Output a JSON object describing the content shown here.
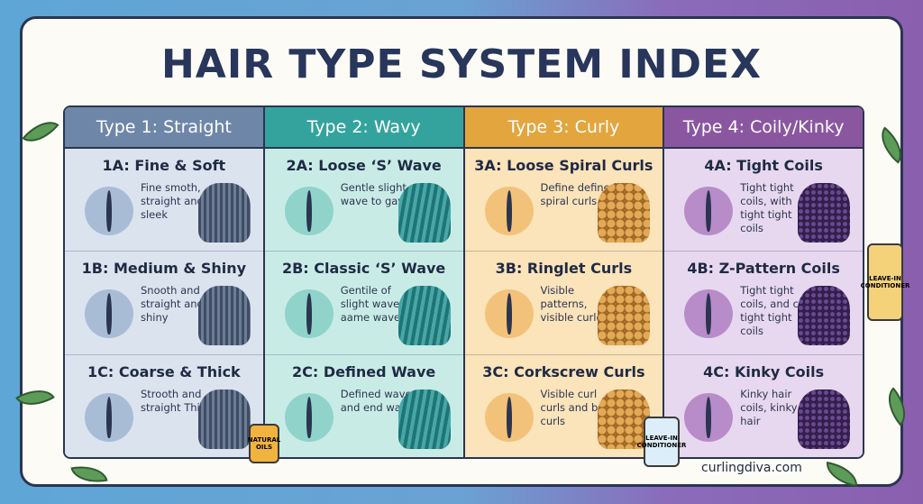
{
  "header": {
    "title": "HAIR TYPE SYSTEM INDEX"
  },
  "table": {
    "columns": [
      {
        "header": "Type 1: Straight",
        "rows": [
          {
            "title": "1A: Fine & Soft",
            "description": "Fine smoth, straight and sleek"
          },
          {
            "title": "1B: Medium & Shiny",
            "description": "Snooth and straight and or shiny"
          },
          {
            "title": "1C: Coarse & Thick",
            "description": "Strooth and straight Thick"
          }
        ]
      },
      {
        "header": "Type 2: Wavy",
        "rows": [
          {
            "title": "2A: Loose ‘S’ Wave",
            "description": "Gentle slight wave to gave"
          },
          {
            "title": "2B: Classic ‘S’ Wave",
            "description": "Gentile of slight wave aame wave"
          },
          {
            "title": "2C: Defined Wave",
            "description": "Defined wave and end wave"
          }
        ]
      },
      {
        "header": "Type 3: Curly",
        "rows": [
          {
            "title": "3A: Loose Spiral Curls",
            "description": "Define defined spiral curls"
          },
          {
            "title": "3B: Ringlet Curls",
            "description": "Visible patterns, visible curlens"
          },
          {
            "title": "3C: Corkscrew Curls",
            "description": "Visible curl curls and b curls"
          }
        ]
      },
      {
        "header": "Type 4: Coily/Kinky",
        "rows": [
          {
            "title": "4A: Tight Coils",
            "description": "Tight tight coils, with tight tight coils"
          },
          {
            "title": "4B: Z-Pattern Coils",
            "description": "Tight tight coils, and coils tight tight coils"
          },
          {
            "title": "4C: Kinky Coils",
            "description": "Kinky hair coils, kinky hair"
          }
        ]
      }
    ]
  },
  "bottles": [
    "NATURAL OILS",
    "LEAVE-IN CONDITIONER",
    "LEAVE-IN CONDITIONER"
  ],
  "footer": "curlingdiva.com"
}
